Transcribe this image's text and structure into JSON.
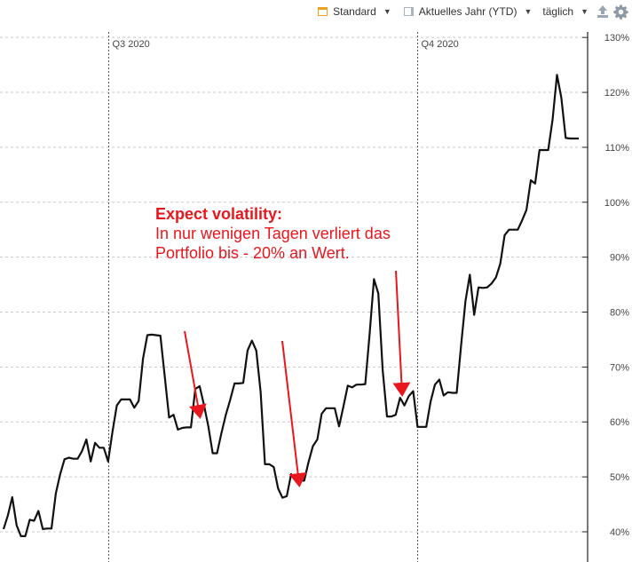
{
  "toolbar": {
    "style_label": "Standard",
    "period_label": "Aktuelles Jahr (YTD)",
    "interval_label": "täglich"
  },
  "annotation": {
    "heading": "Expect volatility:",
    "line1": "In nur wenigen Tagen verliert das",
    "line2": "Portfolio bis - 20% an Wert."
  },
  "colors": {
    "line": "#111111",
    "annotation": "#e8161d",
    "grid": "#c8c8c8"
  },
  "chart_data": {
    "type": "line",
    "title": "",
    "xlabel": "",
    "ylabel": "",
    "ylim": [
      34.5,
      131
    ],
    "y_ticks": [
      40,
      50,
      60,
      70,
      80,
      90,
      100,
      110,
      120,
      130
    ],
    "y_tick_labels": [
      "40%",
      "50%",
      "60%",
      "70%",
      "80%",
      "90%",
      "100%",
      "110%",
      "120%",
      "130%"
    ],
    "y_axis_position": "right",
    "grid": "horizontal dashed",
    "period_markers": [
      {
        "label": "Q3 2020",
        "index": 24
      },
      {
        "label": "Q4 2020",
        "index": 95
      }
    ],
    "series": [
      {
        "values": [
          40.5,
          43.0,
          46.3,
          41.2,
          39.2,
          39.2,
          42.2,
          42.0,
          43.8,
          40.5,
          40.6,
          40.6,
          47.0,
          50.5,
          53.2,
          53.5,
          53.3,
          53.3,
          54.7,
          56.8,
          52.8,
          56.2,
          55.3,
          55.3,
          52.8,
          58.2,
          63.0,
          64.1,
          64.1,
          64.1,
          62.6,
          63.8,
          71.5,
          75.8,
          75.9,
          75.8,
          75.7,
          68.3,
          60.8,
          61.3,
          58.6,
          58.9,
          59.0,
          59.0,
          66.0,
          66.5,
          63.1,
          59.2,
          54.3,
          54.3,
          58.0,
          61.3,
          64.0,
          67.0,
          67.0,
          67.1,
          73.0,
          74.8,
          73.0,
          65.5,
          52.3,
          52.3,
          51.8,
          47.9,
          46.2,
          46.5,
          50.5,
          49.3,
          49.3,
          49.3,
          52.7,
          55.6,
          56.8,
          61.5,
          62.5,
          62.5,
          62.5,
          59.2,
          62.8,
          66.6,
          66.3,
          66.8,
          66.8,
          66.9,
          76.0,
          86.0,
          83.4,
          69.5,
          61.0,
          61.0,
          61.3,
          64.4,
          63.0,
          64.7,
          65.6,
          59.1,
          59.1,
          59.1,
          63.7,
          66.8,
          67.7,
          64.8,
          65.4,
          65.3,
          65.3,
          74.0,
          82.0,
          86.8,
          79.5,
          84.5,
          84.4,
          84.5,
          85.2,
          86.3,
          88.8,
          94.0,
          95.0,
          95.0,
          95.0,
          96.7,
          98.6,
          104.0,
          103.4,
          109.5,
          109.5,
          109.5,
          115.0,
          123.2,
          119.0,
          111.7,
          111.6,
          111.6,
          111.6
        ]
      }
    ]
  }
}
